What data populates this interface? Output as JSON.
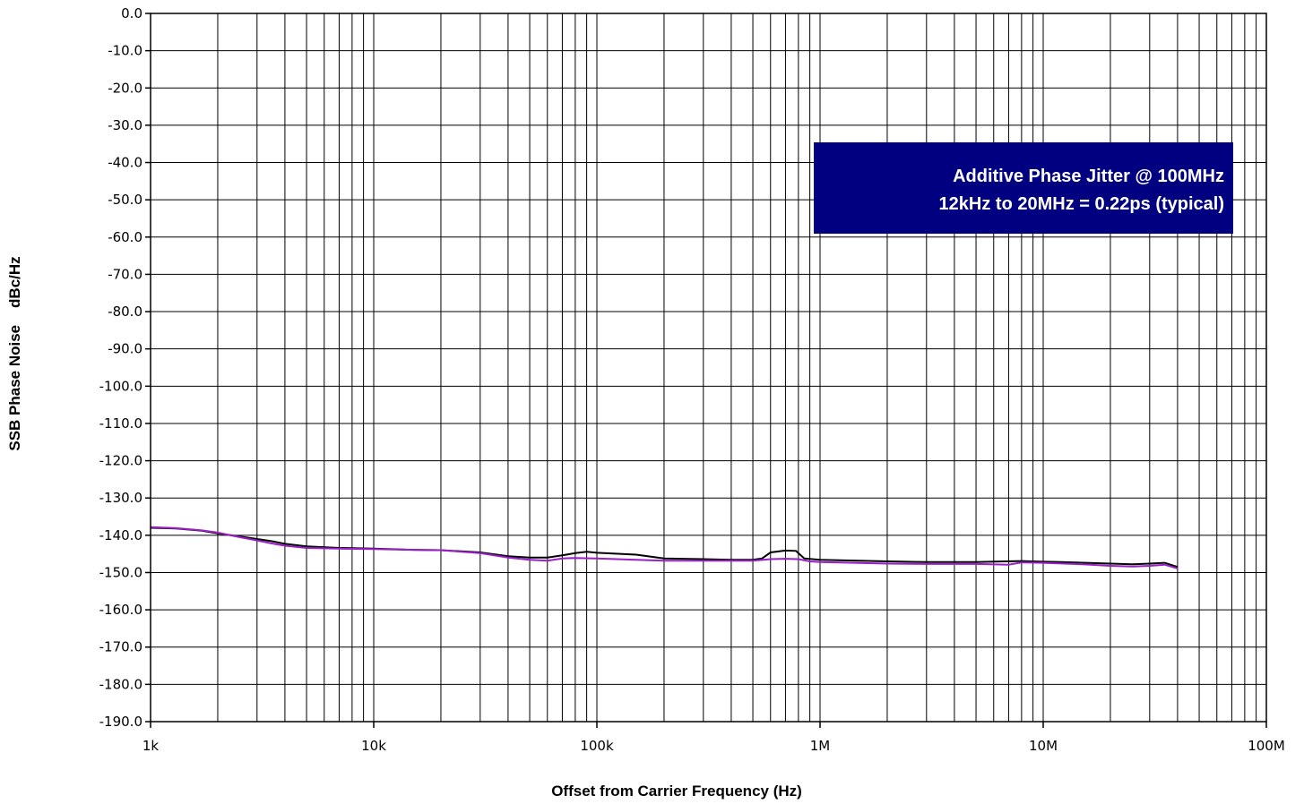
{
  "chart_data": {
    "type": "line",
    "xscale": "log",
    "xlim": [
      1000,
      100000000
    ],
    "ylim": [
      -190,
      0
    ],
    "xlabel": "Offset from Carrier Frequency (Hz)",
    "ylabel": "SSB Phase Noise    dBc/Hz",
    "x_ticks": [
      {
        "value": 1000,
        "label": "1k"
      },
      {
        "value": 10000,
        "label": "10k"
      },
      {
        "value": 100000,
        "label": "100k"
      },
      {
        "value": 1000000,
        "label": "1M"
      },
      {
        "value": 10000000,
        "label": "10M"
      },
      {
        "value": 100000000,
        "label": "100M"
      }
    ],
    "y_ticks": [
      {
        "value": 0,
        "label": "0.0"
      },
      {
        "value": -10,
        "label": "-10.0"
      },
      {
        "value": -20,
        "label": "-20.0"
      },
      {
        "value": -30,
        "label": "-30.0"
      },
      {
        "value": -40,
        "label": "-40.0"
      },
      {
        "value": -50,
        "label": "-50.0"
      },
      {
        "value": -60,
        "label": "-60.0"
      },
      {
        "value": -70,
        "label": "-70.0"
      },
      {
        "value": -80,
        "label": "-80.0"
      },
      {
        "value": -90,
        "label": "-90.0"
      },
      {
        "value": -100,
        "label": "-100.0"
      },
      {
        "value": -110,
        "label": "-110.0"
      },
      {
        "value": -120,
        "label": "-120.0"
      },
      {
        "value": -130,
        "label": "-130.0"
      },
      {
        "value": -140,
        "label": "-140.0"
      },
      {
        "value": -150,
        "label": "-150.0"
      },
      {
        "value": -160,
        "label": "-160.0"
      },
      {
        "value": -170,
        "label": "-170.0"
      },
      {
        "value": -180,
        "label": "-180.0"
      },
      {
        "value": -190,
        "label": "-190.0"
      }
    ],
    "grid": true,
    "annotation": {
      "lines": [
        "Additive Phase Jitter @ 100MHz",
        "12kHz to 20MHz = 0.22ps (typical)"
      ],
      "background": "#000080",
      "text_color": "#ffffff"
    },
    "series": [
      {
        "color": "#000000",
        "points": [
          [
            1000,
            -138
          ],
          [
            1300,
            -138.2
          ],
          [
            1700,
            -138.8
          ],
          [
            2000,
            -139.5
          ],
          [
            2500,
            -140.3
          ],
          [
            3000,
            -141
          ],
          [
            3500,
            -141.6
          ],
          [
            4000,
            -142.3
          ],
          [
            5000,
            -143
          ],
          [
            7000,
            -143.4
          ],
          [
            10000,
            -143.6
          ],
          [
            15000,
            -143.9
          ],
          [
            20000,
            -144
          ],
          [
            30000,
            -144.6
          ],
          [
            40000,
            -145.6
          ],
          [
            50000,
            -146
          ],
          [
            60000,
            -146
          ],
          [
            70000,
            -145.4
          ],
          [
            80000,
            -144.8
          ],
          [
            90000,
            -144.4
          ],
          [
            100000,
            -144.7
          ],
          [
            150000,
            -145.2
          ],
          [
            200000,
            -146.2
          ],
          [
            300000,
            -146.4
          ],
          [
            400000,
            -146.6
          ],
          [
            500000,
            -146.6
          ],
          [
            550000,
            -146.2
          ],
          [
            600000,
            -144.6
          ],
          [
            700000,
            -144.1
          ],
          [
            780000,
            -144.2
          ],
          [
            850000,
            -146.2
          ],
          [
            1000000,
            -146.6
          ],
          [
            2000000,
            -147
          ],
          [
            3000000,
            -147.2
          ],
          [
            5000000,
            -147.2
          ],
          [
            8000000,
            -146.9
          ],
          [
            10000000,
            -147.1
          ],
          [
            12000000,
            -147.2
          ],
          [
            20000000,
            -147.6
          ],
          [
            25000000,
            -147.8
          ],
          [
            30000000,
            -147.6
          ],
          [
            35000000,
            -147.4
          ],
          [
            40000000,
            -148.5
          ]
        ]
      },
      {
        "color": "#9a1fc8",
        "points": [
          [
            1000,
            -137.8
          ],
          [
            1300,
            -138.1
          ],
          [
            1700,
            -138.7
          ],
          [
            2000,
            -139.3
          ],
          [
            2500,
            -140.5
          ],
          [
            3000,
            -141.4
          ],
          [
            3500,
            -142.2
          ],
          [
            4000,
            -142.8
          ],
          [
            5000,
            -143.4
          ],
          [
            7000,
            -143.6
          ],
          [
            10000,
            -143.7
          ],
          [
            15000,
            -143.9
          ],
          [
            20000,
            -144
          ],
          [
            30000,
            -144.8
          ],
          [
            40000,
            -146
          ],
          [
            50000,
            -146.6
          ],
          [
            60000,
            -146.8
          ],
          [
            70000,
            -146.2
          ],
          [
            80000,
            -146.1
          ],
          [
            100000,
            -146.2
          ],
          [
            150000,
            -146.6
          ],
          [
            200000,
            -146.8
          ],
          [
            300000,
            -146.8
          ],
          [
            500000,
            -146.8
          ],
          [
            600000,
            -146.4
          ],
          [
            700000,
            -146.3
          ],
          [
            800000,
            -146.4
          ],
          [
            900000,
            -147
          ],
          [
            1000000,
            -147.2
          ],
          [
            2000000,
            -147.6
          ],
          [
            3000000,
            -147.7
          ],
          [
            5000000,
            -147.7
          ],
          [
            7000000,
            -147.9
          ],
          [
            8000000,
            -147.3
          ],
          [
            10000000,
            -147.4
          ],
          [
            15000000,
            -147.8
          ],
          [
            20000000,
            -148.2
          ],
          [
            25000000,
            -148.4
          ],
          [
            30000000,
            -148.2
          ],
          [
            35000000,
            -147.9
          ],
          [
            40000000,
            -148.9
          ]
        ]
      }
    ]
  }
}
